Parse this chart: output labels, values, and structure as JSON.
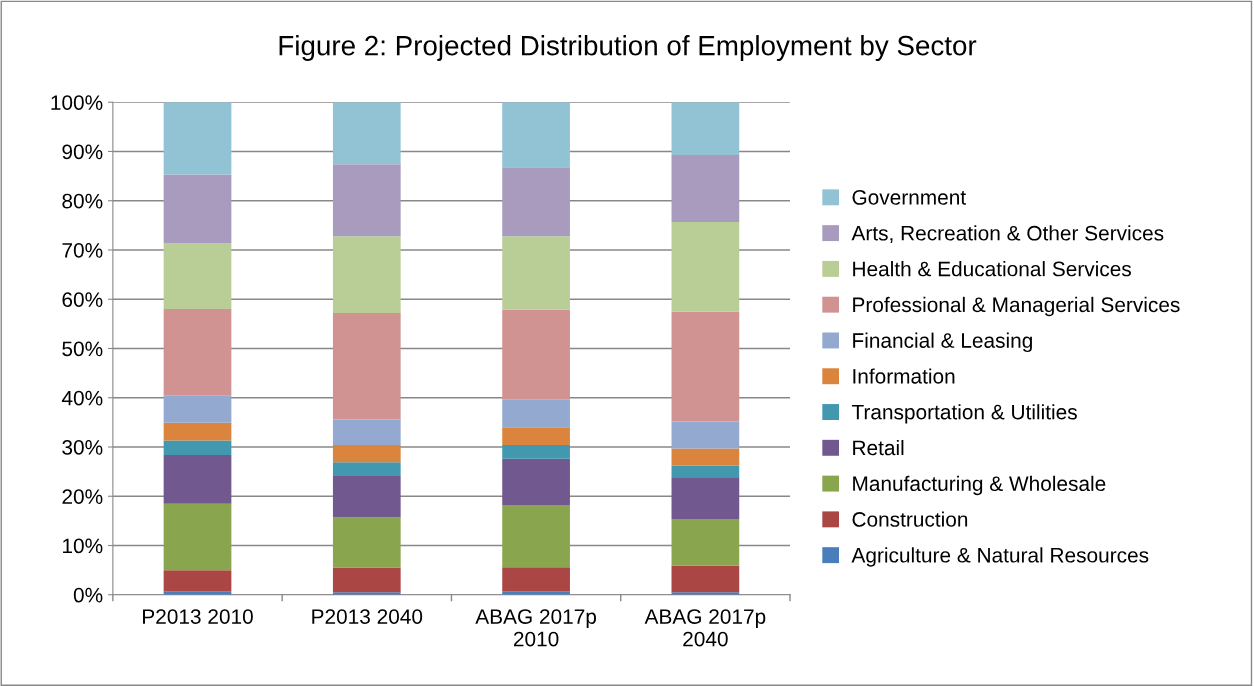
{
  "chart_data": {
    "type": "bar",
    "title": "Figure 2: Projected Distribution of Employment by Sector",
    "categories": [
      "P2013 2010",
      "P2013 2040",
      "ABAG 2017p\n2010",
      "ABAG 2017p\n2040"
    ],
    "stacked": true,
    "ylim": [
      0,
      100
    ],
    "yticks": [
      {
        "value": 0,
        "label": "0%"
      },
      {
        "value": 10,
        "label": "10%"
      },
      {
        "value": 20,
        "label": "20%"
      },
      {
        "value": 30,
        "label": "30%"
      },
      {
        "value": 40,
        "label": "40%"
      },
      {
        "value": 50,
        "label": "50%"
      },
      {
        "value": 60,
        "label": "60%"
      },
      {
        "value": 70,
        "label": "70%"
      },
      {
        "value": 80,
        "label": "80%"
      },
      {
        "value": 90,
        "label": "90%"
      },
      {
        "value": 100,
        "label": "100%"
      }
    ],
    "grid": "y",
    "legend": "right",
    "series": [
      {
        "name": "Agriculture & Natural Resources",
        "color": "#4a7ebb",
        "values": [
          0.7,
          0.5,
          0.7,
          0.5
        ]
      },
      {
        "name": "Construction",
        "color": "#aa4643",
        "values": [
          4.3,
          5.0,
          4.9,
          5.4
        ]
      },
      {
        "name": "Manufacturing & Wholesale",
        "color": "#89a54e",
        "values": [
          13.5,
          10.2,
          12.6,
          9.5
        ]
      },
      {
        "name": "Retail",
        "color": "#71588f",
        "values": [
          9.9,
          8.4,
          9.4,
          8.3
        ]
      },
      {
        "name": "Transportation & Utilities",
        "color": "#4198af",
        "values": [
          2.9,
          2.8,
          2.8,
          2.5
        ]
      },
      {
        "name": "Information",
        "color": "#db843d",
        "values": [
          3.6,
          3.5,
          3.6,
          3.5
        ]
      },
      {
        "name": "Financial & Leasing",
        "color": "#93a9cf",
        "values": [
          5.6,
          5.2,
          5.7,
          5.5
        ]
      },
      {
        "name": "Professional & Managerial Services",
        "color": "#d19392",
        "values": [
          17.5,
          21.6,
          18.2,
          22.3
        ]
      },
      {
        "name": "Health & Educational Services",
        "color": "#b9cd96",
        "values": [
          13.3,
          15.6,
          14.9,
          18.2
        ]
      },
      {
        "name": "Arts, Recreation & Other Services",
        "color": "#a99bbd",
        "values": [
          14.0,
          14.6,
          14.0,
          13.6
        ]
      },
      {
        "name": "Government",
        "color": "#92c3d4",
        "values": [
          14.7,
          12.6,
          13.2,
          10.7
        ]
      }
    ]
  }
}
